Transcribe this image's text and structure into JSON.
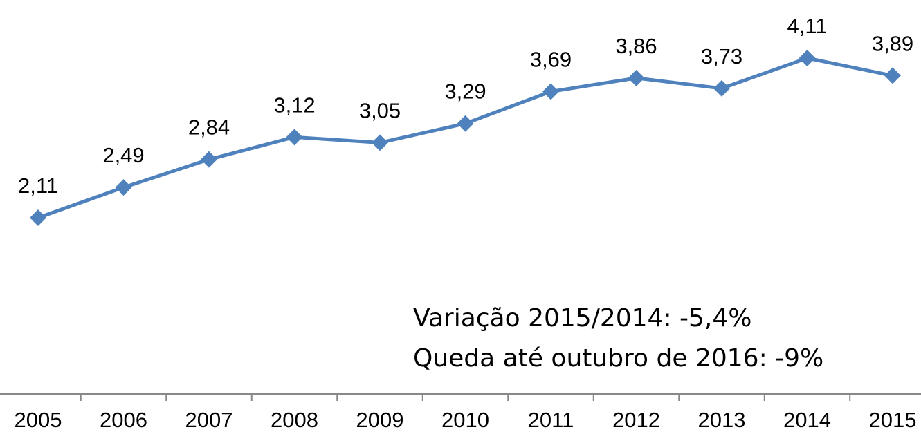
{
  "chart_data": {
    "type": "line",
    "categories": [
      "2005",
      "2006",
      "2007",
      "2008",
      "2009",
      "2010",
      "2011",
      "2012",
      "2013",
      "2014",
      "2015"
    ],
    "series": [
      {
        "color": "#4f81bd",
        "values": [
          2.11,
          2.49,
          2.84,
          3.12,
          3.05,
          3.29,
          3.69,
          3.86,
          3.73,
          4.11,
          3.89
        ],
        "value_labels": [
          "2,11",
          "2,49",
          "2,84",
          "3,12",
          "3,05",
          "3,29",
          "3,69",
          "3,86",
          "3,73",
          "4,11",
          "3,89"
        ]
      }
    ],
    "annotations": [
      "Variação 2015/2014: -5,4%",
      "Queda até outubro de 2016: -9%"
    ]
  }
}
